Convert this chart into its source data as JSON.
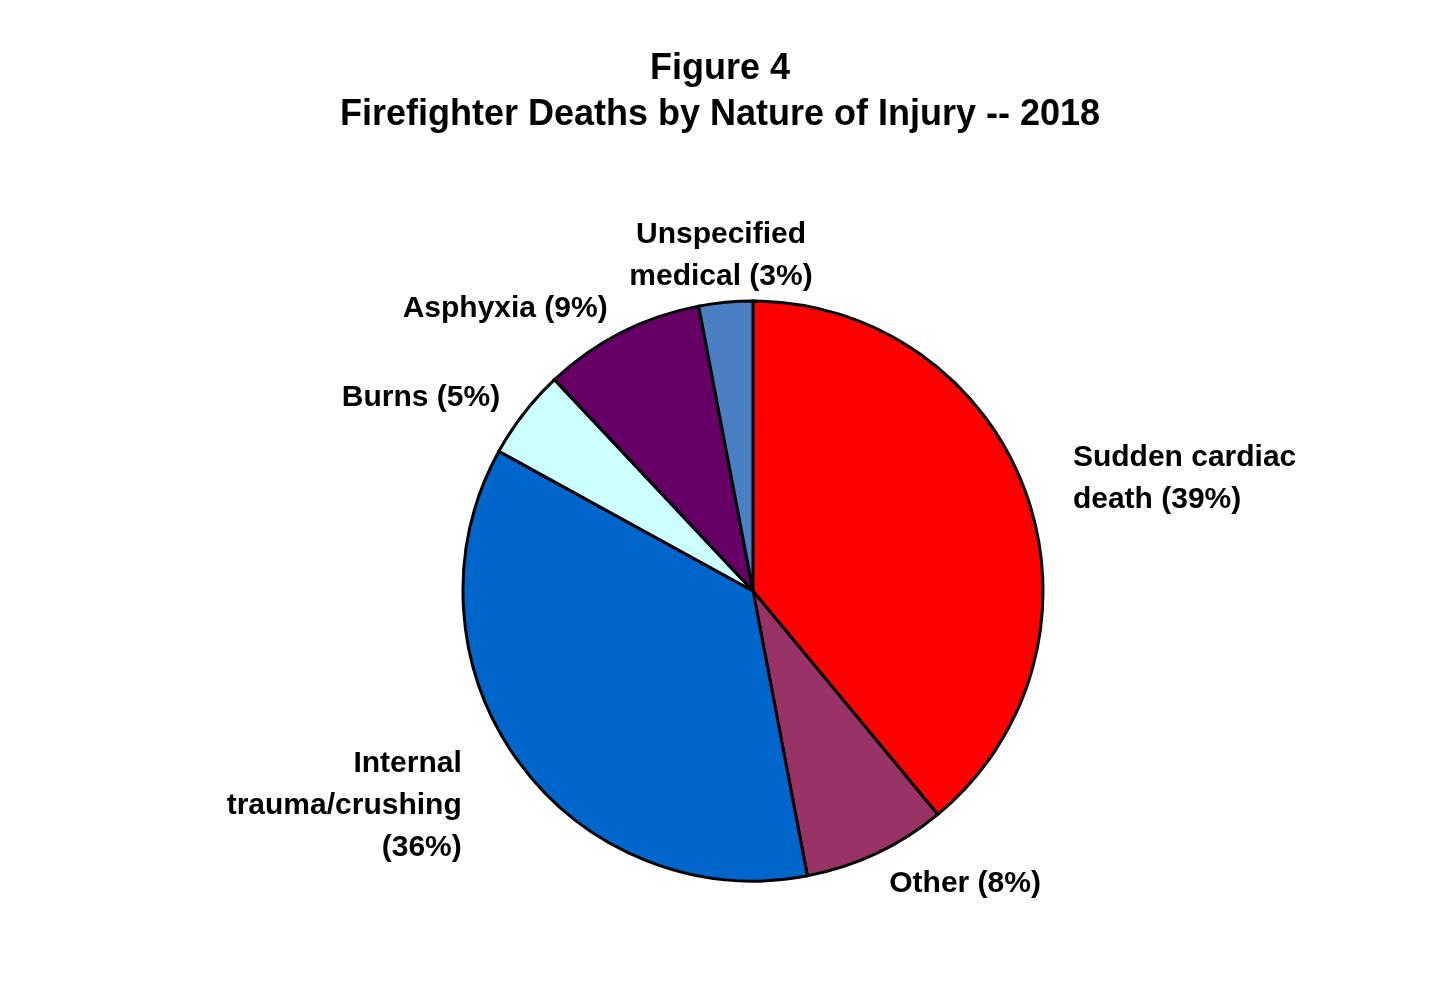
{
  "chart_data": {
    "type": "pie",
    "title": "Figure 4",
    "subtitle": "Firefighter Deaths by Nature of Injury -- 2018",
    "categories": [
      "Sudden cardiac death",
      "Other",
      "Internal trauma/crushing",
      "Burns",
      "Asphyxia",
      "Unspecified medical"
    ],
    "values": [
      39,
      8,
      36,
      5,
      9,
      3
    ],
    "value_labels": [
      "(39%)",
      "(8%)",
      "(36%)",
      "(5%)",
      "(9%)",
      "(3%)"
    ],
    "colors": [
      "#ff0000",
      "#993366",
      "#0066cc",
      "#ccffff",
      "#660066",
      "#4a7fc4"
    ]
  }
}
